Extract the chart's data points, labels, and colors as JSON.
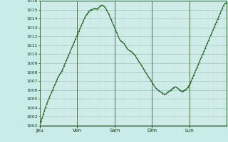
{
  "background_color": "#c8ece8",
  "plot_bg_color": "#d4f0ec",
  "line_color": "#1a5c1a",
  "marker_color": "#1a5c1a",
  "grid_major_color": "#a0c8c0",
  "grid_minor_color": "#b8dcd8",
  "vline_color": "#4a6a4a",
  "text_color": "#1a3a1a",
  "ylim": [
    1002,
    1016
  ],
  "yticks": [
    1002,
    1003,
    1004,
    1005,
    1006,
    1007,
    1008,
    1009,
    1010,
    1011,
    1012,
    1013,
    1014,
    1015,
    1016
  ],
  "xtick_labels": [
    "Jeu",
    "Ven",
    "Sam",
    "Dim",
    "Lun"
  ],
  "xtick_positions": [
    0,
    24,
    48,
    72,
    96
  ],
  "vline_positions": [
    0,
    24,
    48,
    72,
    96
  ],
  "total_hours": 120,
  "pressure_data": [
    1002.2,
    1002.5,
    1002.9,
    1003.3,
    1003.7,
    1004.1,
    1004.5,
    1004.8,
    1005.1,
    1005.4,
    1005.7,
    1006.0,
    1006.3,
    1006.6,
    1006.9,
    1007.2,
    1007.5,
    1007.7,
    1007.9,
    1008.1,
    1008.4,
    1008.7,
    1009.0,
    1009.3,
    1009.6,
    1009.9,
    1010.2,
    1010.5,
    1010.8,
    1011.1,
    1011.4,
    1011.7,
    1012.0,
    1012.3,
    1012.6,
    1012.9,
    1013.2,
    1013.5,
    1013.8,
    1014.1,
    1014.3,
    1014.5,
    1014.7,
    1014.85,
    1014.95,
    1015.0,
    1015.05,
    1015.1,
    1015.15,
    1015.1,
    1015.05,
    1015.2,
    1015.35,
    1015.45,
    1015.5,
    1015.45,
    1015.35,
    1015.2,
    1015.0,
    1014.75,
    1014.5,
    1014.2,
    1013.9,
    1013.6,
    1013.3,
    1013.0,
    1012.7,
    1012.4,
    1012.1,
    1011.8,
    1011.55,
    1011.45,
    1011.35,
    1011.25,
    1011.05,
    1010.85,
    1010.65,
    1010.5,
    1010.4,
    1010.35,
    1010.25,
    1010.15,
    1010.0,
    1009.85,
    1009.65,
    1009.45,
    1009.25,
    1009.05,
    1008.85,
    1008.65,
    1008.45,
    1008.2,
    1008.0,
    1007.8,
    1007.6,
    1007.4,
    1007.2,
    1007.0,
    1006.8,
    1006.6,
    1006.4,
    1006.2,
    1006.1,
    1006.0,
    1005.9,
    1005.8,
    1005.7,
    1005.6,
    1005.55,
    1005.5,
    1005.6,
    1005.7,
    1005.8,
    1005.9,
    1006.0,
    1006.1,
    1006.2,
    1006.3,
    1006.35,
    1006.3,
    1006.2,
    1006.1,
    1006.0,
    1005.9,
    1005.85,
    1005.9,
    1005.95,
    1006.05,
    1006.15,
    1006.3,
    1006.5,
    1006.75,
    1007.05,
    1007.35,
    1007.65,
    1007.95,
    1008.25,
    1008.55,
    1008.85,
    1009.15,
    1009.45,
    1009.75,
    1010.05,
    1010.35,
    1010.65,
    1010.95,
    1011.25,
    1011.55,
    1011.85,
    1012.15,
    1012.45,
    1012.75,
    1013.05,
    1013.35,
    1013.65,
    1013.95,
    1014.25,
    1014.55,
    1014.85,
    1015.15,
    1015.45,
    1015.65,
    1015.75,
    1015.8
  ]
}
